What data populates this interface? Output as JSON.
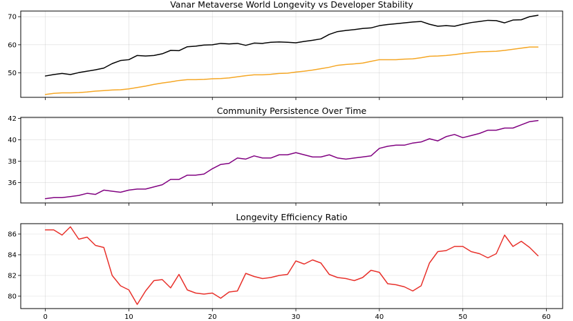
{
  "chart_data": [
    {
      "type": "line",
      "title": "Vanar Metaverse World Longevity vs Developer Stability",
      "xlabel": "",
      "ylabel": "",
      "xlim": [
        -2.95,
        61.95
      ],
      "ylim": [
        41.3,
        72.0
      ],
      "yticks": [
        50,
        60,
        70
      ],
      "xticks": [
        0,
        10,
        20,
        30,
        40,
        50,
        60
      ],
      "show_xtick_labels": false,
      "grid": true,
      "legend": "none",
      "series": [
        {
          "color": "#000000",
          "x": [
            0,
            1,
            2,
            3,
            4,
            5,
            6,
            7,
            8,
            9,
            10,
            11,
            12,
            13,
            14,
            15,
            16,
            17,
            18,
            19,
            20,
            21,
            22,
            23,
            24,
            25,
            26,
            27,
            28,
            29,
            30,
            31,
            32,
            33,
            34,
            35,
            36,
            37,
            38,
            39,
            40,
            41,
            42,
            43,
            44,
            45,
            46,
            47,
            48,
            49,
            50,
            51,
            52,
            53,
            54,
            55,
            56,
            57,
            58,
            59
          ],
          "values": [
            48.9,
            49.4,
            49.8,
            49.4,
            50.1,
            50.6,
            51.1,
            51.7,
            53.3,
            54.4,
            54.7,
            56.2,
            56.0,
            56.2,
            56.8,
            58.0,
            57.9,
            59.3,
            59.5,
            59.9,
            60.0,
            60.5,
            60.3,
            60.5,
            59.8,
            60.6,
            60.5,
            60.9,
            61.0,
            60.9,
            60.7,
            61.2,
            61.6,
            62.1,
            63.7,
            64.7,
            65.1,
            65.4,
            65.8,
            66.0,
            66.8,
            67.2,
            67.5,
            67.8,
            68.1,
            68.3,
            67.3,
            66.6,
            66.8,
            66.6,
            67.3,
            67.9,
            68.3,
            68.7,
            68.6,
            67.8,
            68.8,
            68.9,
            70.0,
            70.5
          ]
        },
        {
          "color": "#f5a623",
          "x": [
            0,
            1,
            2,
            3,
            4,
            5,
            6,
            7,
            8,
            9,
            10,
            11,
            12,
            13,
            14,
            15,
            16,
            17,
            18,
            19,
            20,
            21,
            22,
            23,
            24,
            25,
            26,
            27,
            28,
            29,
            30,
            31,
            32,
            33,
            34,
            35,
            36,
            37,
            38,
            39,
            40,
            41,
            42,
            43,
            44,
            45,
            46,
            47,
            48,
            49,
            50,
            51,
            52,
            53,
            54,
            55,
            56,
            57,
            58,
            59
          ],
          "values": [
            42.3,
            42.7,
            42.9,
            42.9,
            43.0,
            43.2,
            43.5,
            43.7,
            43.9,
            44.0,
            44.3,
            44.8,
            45.3,
            45.9,
            46.4,
            46.8,
            47.3,
            47.6,
            47.6,
            47.7,
            47.9,
            48.0,
            48.2,
            48.6,
            49.0,
            49.3,
            49.3,
            49.5,
            49.8,
            49.9,
            50.3,
            50.6,
            51.0,
            51.5,
            52.0,
            52.7,
            53.0,
            53.2,
            53.5,
            54.1,
            54.7,
            54.7,
            54.7,
            54.9,
            55.0,
            55.4,
            55.9,
            56.0,
            56.2,
            56.5,
            56.9,
            57.2,
            57.5,
            57.6,
            57.7,
            58.0,
            58.4,
            58.8,
            59.2,
            59.2
          ]
        }
      ]
    },
    {
      "type": "line",
      "title": "Community Persistence Over Time",
      "xlabel": "",
      "ylabel": "",
      "xlim": [
        -2.95,
        61.95
      ],
      "ylim": [
        34.1,
        42.1
      ],
      "yticks": [
        36,
        38,
        40,
        42
      ],
      "xticks": [
        0,
        10,
        20,
        30,
        40,
        50,
        60
      ],
      "show_xtick_labels": false,
      "grid": true,
      "legend": "none",
      "series": [
        {
          "color": "#800080",
          "x": [
            0,
            1,
            2,
            3,
            4,
            5,
            6,
            7,
            8,
            9,
            10,
            11,
            12,
            13,
            14,
            15,
            16,
            17,
            18,
            19,
            20,
            21,
            22,
            23,
            24,
            25,
            26,
            27,
            28,
            29,
            30,
            31,
            32,
            33,
            34,
            35,
            36,
            37,
            38,
            39,
            40,
            41,
            42,
            43,
            44,
            45,
            46,
            47,
            48,
            49,
            50,
            51,
            52,
            53,
            54,
            55,
            56,
            57,
            58,
            59
          ],
          "values": [
            34.5,
            34.6,
            34.6,
            34.7,
            34.8,
            35.0,
            34.9,
            35.3,
            35.2,
            35.1,
            35.3,
            35.4,
            35.4,
            35.6,
            35.8,
            36.3,
            36.3,
            36.7,
            36.7,
            36.8,
            37.3,
            37.7,
            37.8,
            38.3,
            38.2,
            38.5,
            38.3,
            38.3,
            38.6,
            38.6,
            38.8,
            38.6,
            38.4,
            38.4,
            38.6,
            38.3,
            38.2,
            38.3,
            38.4,
            38.5,
            39.2,
            39.4,
            39.5,
            39.5,
            39.7,
            39.8,
            40.1,
            39.9,
            40.3,
            40.5,
            40.2,
            40.4,
            40.6,
            40.9,
            40.9,
            41.1,
            41.1,
            41.4,
            41.7,
            41.8
          ]
        }
      ]
    },
    {
      "type": "line",
      "title": "Longevity Efficiency Ratio",
      "xlabel": "",
      "ylabel": "",
      "xlim": [
        -2.95,
        61.95
      ],
      "ylim": [
        78.8,
        87.0
      ],
      "yticks": [
        80,
        82,
        84,
        86
      ],
      "xticks": [
        0,
        10,
        20,
        30,
        40,
        50,
        60
      ],
      "show_xtick_labels": true,
      "grid": true,
      "legend": "none",
      "series": [
        {
          "color": "#e8302a",
          "x": [
            0,
            1,
            2,
            3,
            4,
            5,
            6,
            7,
            8,
            9,
            10,
            11,
            12,
            13,
            14,
            15,
            16,
            17,
            18,
            19,
            20,
            21,
            22,
            23,
            24,
            25,
            26,
            27,
            28,
            29,
            30,
            31,
            32,
            33,
            34,
            35,
            36,
            37,
            38,
            39,
            40,
            41,
            42,
            43,
            44,
            45,
            46,
            47,
            48,
            49,
            50,
            51,
            52,
            53,
            54,
            55,
            56,
            57,
            58,
            59
          ],
          "values": [
            86.4,
            86.4,
            85.9,
            86.7,
            85.5,
            85.7,
            84.9,
            84.7,
            82.0,
            81.0,
            80.6,
            79.2,
            80.5,
            81.5,
            81.6,
            80.8,
            82.1,
            80.6,
            80.3,
            80.2,
            80.3,
            79.8,
            80.4,
            80.5,
            82.2,
            81.9,
            81.7,
            81.8,
            82.0,
            82.1,
            83.4,
            83.1,
            83.5,
            83.2,
            82.1,
            81.8,
            81.7,
            81.5,
            81.8,
            82.5,
            82.3,
            81.2,
            81.1,
            80.9,
            80.5,
            81.0,
            83.2,
            84.3,
            84.4,
            84.8,
            84.8,
            84.3,
            84.1,
            83.7,
            84.1,
            85.9,
            84.8,
            85.3,
            84.7,
            83.9
          ]
        }
      ]
    }
  ]
}
